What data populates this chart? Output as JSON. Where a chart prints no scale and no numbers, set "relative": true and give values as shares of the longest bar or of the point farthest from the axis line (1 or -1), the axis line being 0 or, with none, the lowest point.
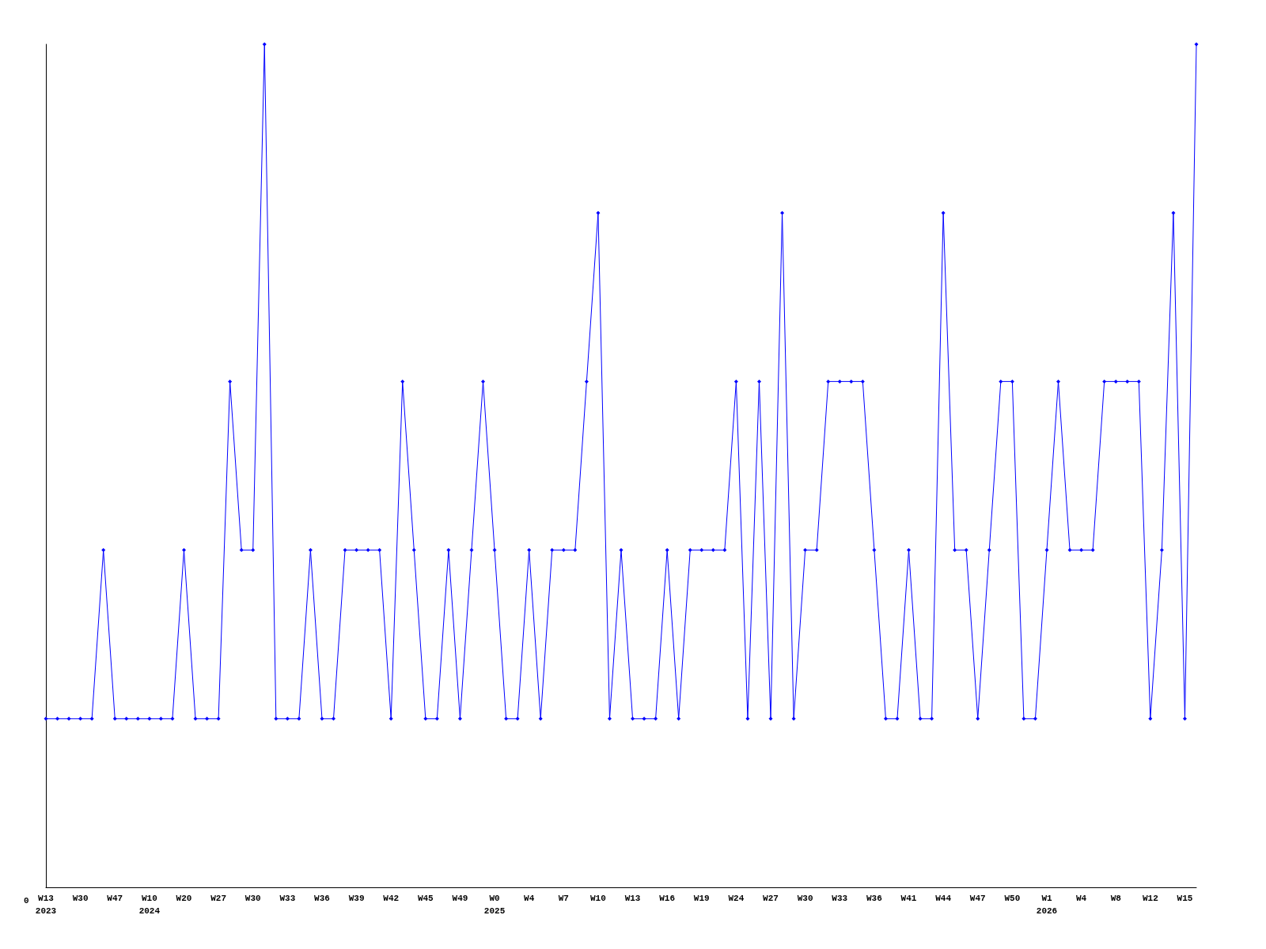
{
  "chart_data": {
    "type": "line",
    "relative": true,
    "marker": "diamond",
    "annotations": [
      "0"
    ],
    "categories": [
      "W13\n2023",
      null,
      null,
      "W30",
      null,
      null,
      "W47",
      null,
      null,
      "W10\n2024",
      null,
      null,
      "W20",
      null,
      null,
      "W27",
      null,
      null,
      "W30",
      null,
      null,
      "W33",
      null,
      null,
      "W36",
      null,
      null,
      "W39",
      null,
      null,
      "W42",
      null,
      null,
      "W45",
      null,
      null,
      "W49",
      null,
      null,
      "W0\n2025",
      null,
      null,
      "W4",
      null,
      null,
      "W7",
      null,
      null,
      "W10",
      null,
      null,
      "W13",
      null,
      null,
      "W16",
      null,
      null,
      "W19",
      null,
      null,
      "W24",
      null,
      null,
      "W27",
      null,
      null,
      "W30",
      null,
      null,
      "W33",
      null,
      null,
      "W36",
      null,
      null,
      "W41",
      null,
      null,
      "W44",
      null,
      null,
      "W47",
      null,
      null,
      "W50",
      null,
      null,
      "W1\n2026",
      null,
      null,
      "W4",
      null,
      null,
      "W8",
      null,
      null,
      "W12",
      null,
      null,
      "W15",
      null
    ],
    "series": [
      {
        "color": "#0000ff",
        "values": [
          0.2,
          0.2,
          0.2,
          0.2,
          0.2,
          0.4,
          0.2,
          0.2,
          0.2,
          0.2,
          0.2,
          0.2,
          0.4,
          0.2,
          0.2,
          0.2,
          0.6,
          0.4,
          0.4,
          1,
          0.2,
          0.2,
          0.2,
          0.4,
          0.2,
          0.2,
          0.4,
          0.4,
          0.4,
          0.4,
          0.2,
          0.6,
          0.4,
          0.2,
          0.2,
          0.4,
          0.2,
          0.4,
          0.6,
          0.4,
          0.2,
          0.2,
          0.4,
          0.2,
          0.4,
          0.4,
          0.4,
          0.6,
          0.8,
          0.2,
          0.4,
          0.2,
          0.2,
          0.2,
          0.4,
          0.2,
          0.4,
          0.4,
          0.4,
          0.4,
          0.6,
          0.2,
          0.6,
          0.2,
          0.8,
          0.2,
          0.4,
          0.4,
          0.6,
          0.6,
          0.6,
          0.6,
          0.4,
          0.2,
          0.2,
          0.4,
          0.2,
          0.2,
          0.8,
          0.4,
          0.4,
          0.2,
          0.4,
          0.6,
          0.6,
          0.2,
          0.2,
          0.4,
          0.6,
          0.4,
          0.4,
          0.4,
          0.6,
          0.6,
          0.6,
          0.6,
          0.2,
          0.4,
          0.8,
          0.2,
          1
        ]
      }
    ]
  }
}
